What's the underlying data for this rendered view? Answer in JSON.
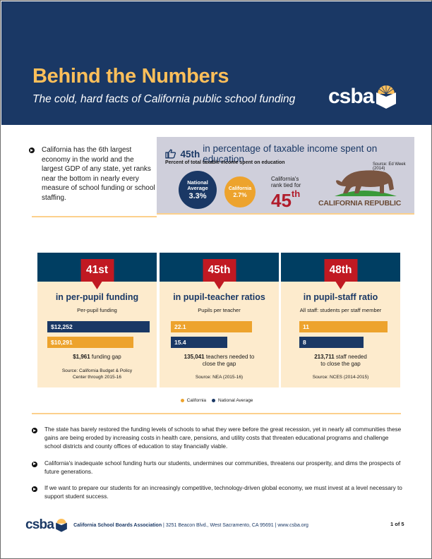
{
  "header": {
    "title": "Behind the Numbers",
    "subtitle": "The cold, hard facts of California public school funding",
    "logo_text": "csba"
  },
  "intro": {
    "text": "California has the 6th largest economy in the world and the largest GDP of any state, yet ranks near the bottom in nearly every measure of school funding or school staffing."
  },
  "rank_box": {
    "icon": "thumbs-down-icon",
    "rank": "45th",
    "heading": "in percentage of taxable income spent on education",
    "subheading": "Percent of total taxable income spent on education",
    "source": "Source: Ed Week (2014)",
    "national": {
      "label_line1": "National",
      "label_line2": "Average",
      "value": "3.3%"
    },
    "california": {
      "label": "California",
      "value": "2.7%"
    },
    "ca_rank_label_line1": "California's",
    "ca_rank_label_line2": "rank tied for",
    "ca_rank_number": "45",
    "ca_rank_suffix": "th",
    "flag_text": "CALIFORNIA REPUBLIC"
  },
  "colors": {
    "navy": "#1a3865",
    "gold": "#fdbf5a",
    "orange": "#eda32d",
    "red": "#c11922",
    "panel": "#fdebcd"
  },
  "stats": [
    {
      "rank": "41st",
      "title": "in per-pupil funding",
      "subtitle": "Per-pupil funding",
      "bars": [
        {
          "series": "National Average",
          "label": "$12,252",
          "value": 12252
        },
        {
          "series": "California",
          "label": "$10,291",
          "value": 10291
        }
      ],
      "gap_bold": "$1,961",
      "gap_text": " funding gap",
      "gap_line2": "",
      "source_line1": "Source: California Budget & Policy",
      "source_line2": "Center through 2015-16"
    },
    {
      "rank": "45th",
      "title": "in pupil-teacher ratios",
      "subtitle": "Pupils per teacher",
      "bars": [
        {
          "series": "California",
          "label": "22.1",
          "value": 22.1
        },
        {
          "series": "National Average",
          "label": "15.4",
          "value": 15.4
        }
      ],
      "gap_bold": "135,041",
      "gap_text": " teachers needed to",
      "gap_line2": "close the gap",
      "source_line1": "Source: NEA (2015-16)",
      "source_line2": ""
    },
    {
      "rank": "48th",
      "title": "in pupil-staff ratio",
      "subtitle": "All staff: students per staff member",
      "bars": [
        {
          "series": "California",
          "label": "11",
          "value": 11
        },
        {
          "series": "National Average",
          "label": "8",
          "value": 8
        }
      ],
      "gap_bold": "213,711",
      "gap_text": " staff needed",
      "gap_line2": "to close the gap",
      "source_line1": "Source: NCES (2014-2015)",
      "source_line2": ""
    }
  ],
  "legend": [
    {
      "label": "California",
      "color": "#eda32d"
    },
    {
      "label": "National Average",
      "color": "#1a3865"
    }
  ],
  "bullets": [
    "The state has barely restored the funding levels of schools to what they were before the great recession, yet in nearly all communities these gains are being eroded by increasing costs in health care, pensions, and utility costs that threaten educational programs and challenge school districts and county offices of education to stay financially viable.",
    "California's inadequate school funding hurts our students, undermines our communities, threatens our prosperity, and dims the prospects of future generations.",
    "If we want to prepare our students for an increasingly competitive, technology-driven global economy, we must invest at a level necessary to support student success."
  ],
  "footer": {
    "logo_text": "csba",
    "org": "California School Boards Association",
    "sep1": " | ",
    "address": "3251 Beacon Blvd., West Sacramento, CA 95691",
    "sep2": " | ",
    "website": "www.csba.org",
    "page": "1 of 5"
  }
}
